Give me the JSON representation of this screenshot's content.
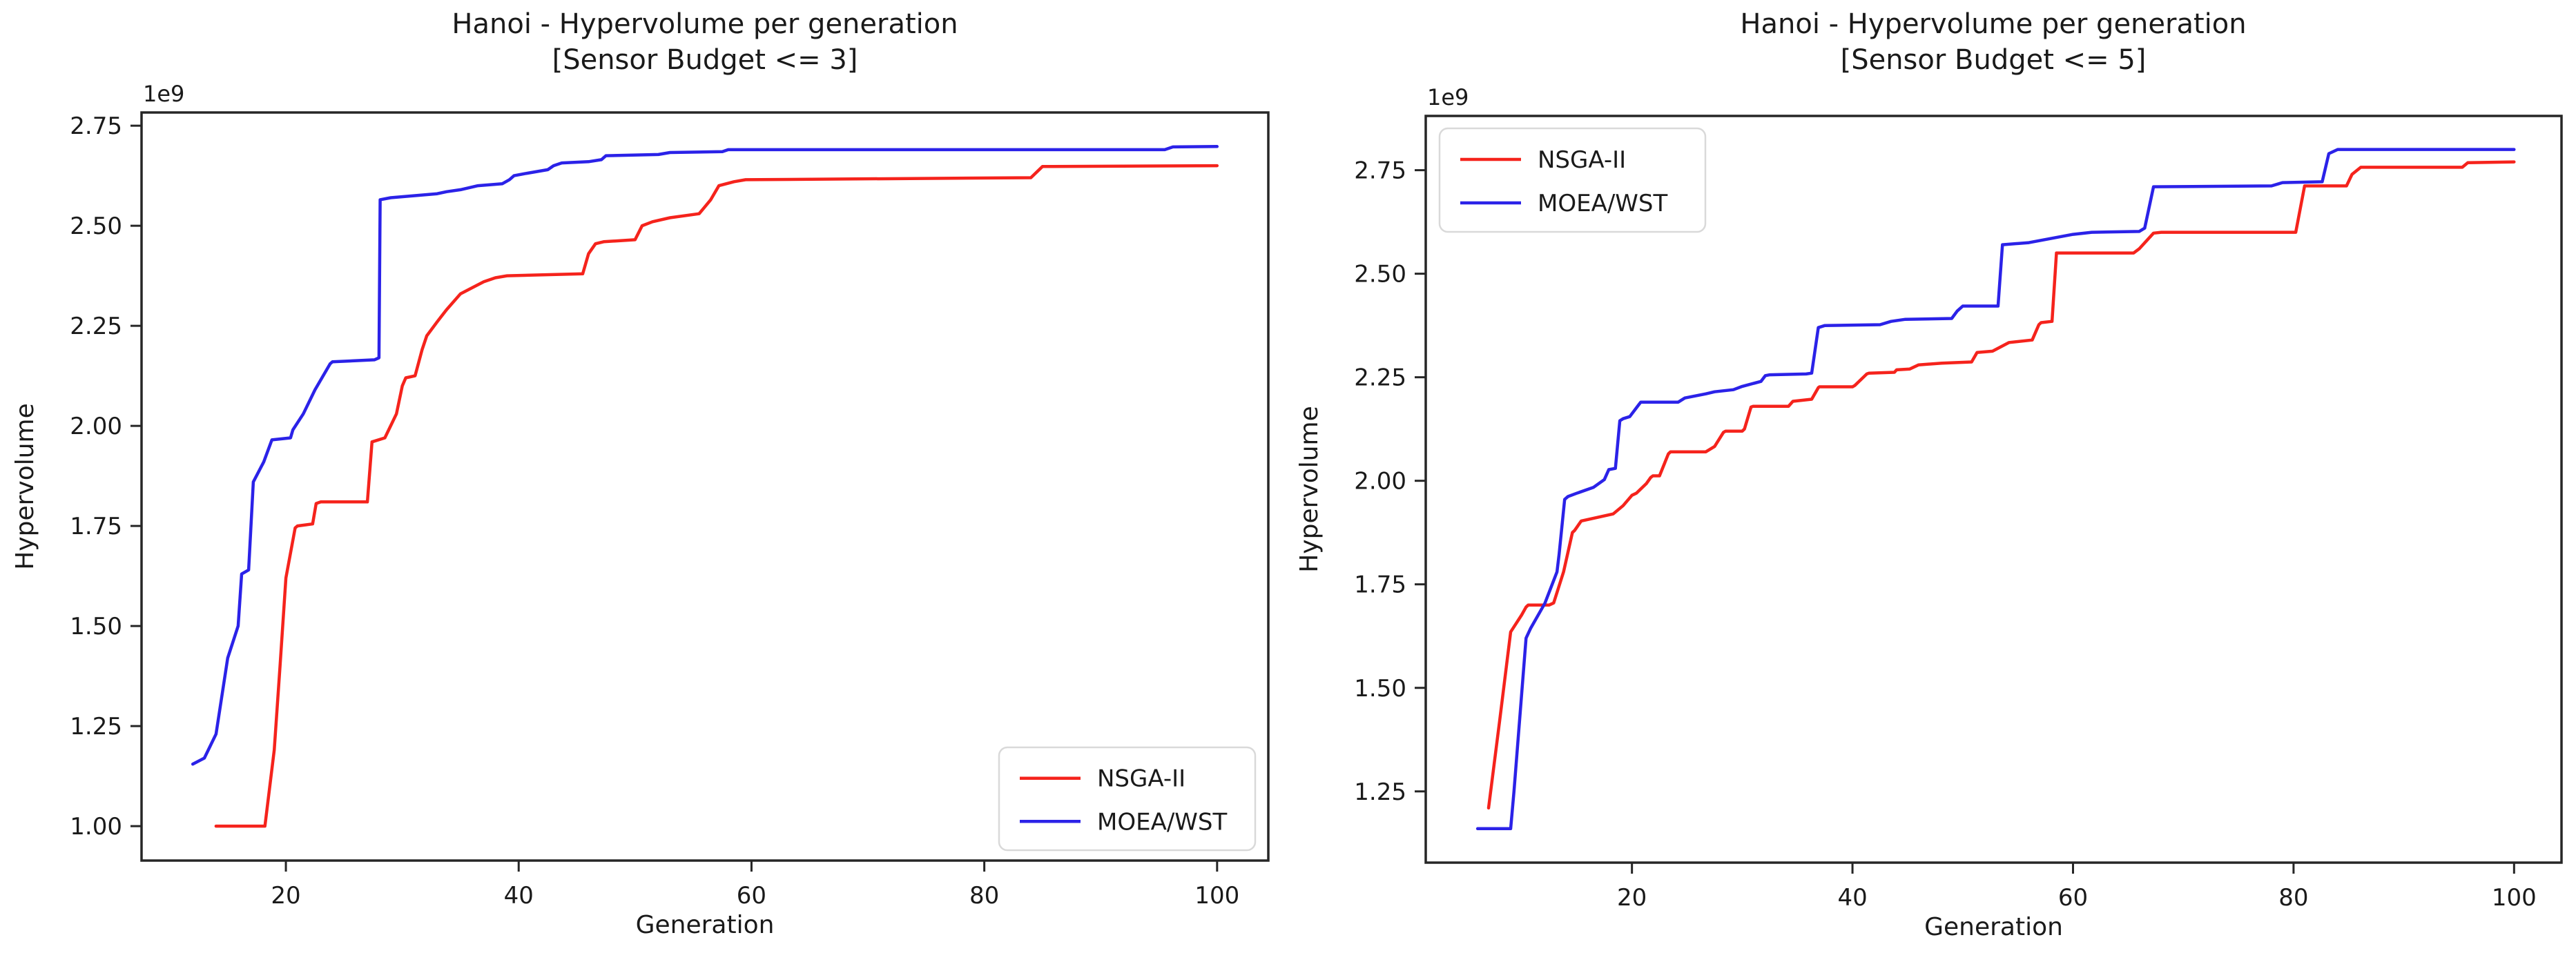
{
  "figure": {
    "background": "#ffffff",
    "text_color": "#1a1a1a",
    "spine_color": "#262626",
    "legend_border_color": "#d9d9d9",
    "red": "#f5231c",
    "blue": "#2b22e8"
  },
  "chart_data": [
    {
      "type": "line",
      "title": "Hanoi - Hypervolume per generation",
      "subtitle": "[Sensor Budget <= 3]",
      "xlabel": "Generation",
      "ylabel": "Hypervolume",
      "offset_text": "1e9",
      "x_ticks": [
        20,
        40,
        60,
        80,
        100
      ],
      "y_ticks": [
        1.0,
        1.25,
        1.5,
        1.75,
        2.0,
        2.25,
        2.5,
        2.75
      ],
      "xlim": [
        7.6,
        104.4
      ],
      "ylim": [
        0.914,
        2.783
      ],
      "grid": false,
      "legend": {
        "position": "lower right",
        "entries": [
          {
            "label": "NSGA-II",
            "color": "#f5231c"
          },
          {
            "label": "MOEA/WST",
            "color": "#2b22e8"
          }
        ]
      },
      "series": [
        {
          "name": "NSGA-II",
          "color": "#f5231c",
          "points": [
            [
              14,
              1.0
            ],
            [
              18.2,
              1.0
            ],
            [
              19,
              1.19
            ],
            [
              19.5,
              1.4
            ],
            [
              20,
              1.62
            ],
            [
              20.8,
              1.745
            ],
            [
              21,
              1.75
            ],
            [
              22.3,
              1.755
            ],
            [
              22.6,
              1.806
            ],
            [
              23,
              1.81
            ],
            [
              27,
              1.81
            ],
            [
              27.4,
              1.96
            ],
            [
              28.5,
              1.97
            ],
            [
              29,
              2.0
            ],
            [
              29.5,
              2.03
            ],
            [
              30,
              2.1
            ],
            [
              30.3,
              2.12
            ],
            [
              31.1,
              2.125
            ],
            [
              31.7,
              2.19
            ],
            [
              32.1,
              2.225
            ],
            [
              33,
              2.26
            ],
            [
              33.8,
              2.29
            ],
            [
              35,
              2.33
            ],
            [
              36,
              2.345
            ],
            [
              37,
              2.36
            ],
            [
              38,
              2.37
            ],
            [
              39,
              2.375
            ],
            [
              45.5,
              2.38
            ],
            [
              46,
              2.43
            ],
            [
              46.6,
              2.455
            ],
            [
              47.3,
              2.46
            ],
            [
              50,
              2.465
            ],
            [
              50.6,
              2.5
            ],
            [
              51.5,
              2.51
            ],
            [
              53,
              2.52
            ],
            [
              55.5,
              2.53
            ],
            [
              56.5,
              2.565
            ],
            [
              57.2,
              2.6
            ],
            [
              58.5,
              2.61
            ],
            [
              59.5,
              2.615
            ],
            [
              84,
              2.62
            ],
            [
              85,
              2.648
            ],
            [
              100,
              2.65
            ]
          ]
        },
        {
          "name": "MOEA/WST",
          "color": "#2b22e8",
          "points": [
            [
              12,
              1.155
            ],
            [
              13,
              1.17
            ],
            [
              14,
              1.23
            ],
            [
              15,
              1.42
            ],
            [
              15.9,
              1.5
            ],
            [
              16.2,
              1.63
            ],
            [
              16.8,
              1.64
            ],
            [
              17.2,
              1.86
            ],
            [
              18.1,
              1.91
            ],
            [
              18.8,
              1.965
            ],
            [
              20.4,
              1.97
            ],
            [
              20.6,
              1.99
            ],
            [
              21.5,
              2.03
            ],
            [
              22.5,
              2.09
            ],
            [
              23.8,
              2.155
            ],
            [
              24,
              2.16
            ],
            [
              27.6,
              2.165
            ],
            [
              28,
              2.17
            ],
            [
              28.1,
              2.565
            ],
            [
              29,
              2.57
            ],
            [
              31,
              2.575
            ],
            [
              33,
              2.58
            ],
            [
              33.8,
              2.585
            ],
            [
              35,
              2.59
            ],
            [
              36.5,
              2.6
            ],
            [
              38.6,
              2.605
            ],
            [
              39.2,
              2.615
            ],
            [
              39.6,
              2.625
            ],
            [
              40.5,
              2.63
            ],
            [
              42.5,
              2.64
            ],
            [
              43,
              2.65
            ],
            [
              43.7,
              2.657
            ],
            [
              46,
              2.66
            ],
            [
              47.1,
              2.665
            ],
            [
              47.5,
              2.675
            ],
            [
              52,
              2.678
            ],
            [
              53,
              2.683
            ],
            [
              57.5,
              2.685
            ],
            [
              58,
              2.69
            ],
            [
              95.5,
              2.69
            ],
            [
              96.2,
              2.697
            ],
            [
              100,
              2.698
            ]
          ]
        }
      ]
    },
    {
      "type": "line",
      "title": "Hanoi - Hypervolume per generation",
      "subtitle": "[Sensor Budget <= 5]",
      "xlabel": "Generation",
      "ylabel": "Hypervolume",
      "offset_text": "1e9",
      "x_ticks": [
        20,
        40,
        60,
        80,
        100
      ],
      "y_ticks": [
        1.25,
        1.5,
        1.75,
        2.0,
        2.25,
        2.5,
        2.75
      ],
      "xlim": [
        1.3,
        104.3
      ],
      "ylim": [
        1.078,
        2.881
      ],
      "grid": false,
      "legend": {
        "position": "upper left",
        "entries": [
          {
            "label": "NSGA-II",
            "color": "#f5231c"
          },
          {
            "label": "MOEA/WST",
            "color": "#2b22e8"
          }
        ]
      },
      "series": [
        {
          "name": "NSGA-II",
          "color": "#f5231c",
          "points": [
            [
              7,
              1.21
            ],
            [
              8,
              1.42
            ],
            [
              9,
              1.635
            ],
            [
              10,
              1.676
            ],
            [
              10.4,
              1.695
            ],
            [
              10.6,
              1.7
            ],
            [
              12.5,
              1.7
            ],
            [
              12.9,
              1.705
            ],
            [
              13.8,
              1.78
            ],
            [
              14.6,
              1.875
            ],
            [
              14.8,
              1.88
            ],
            [
              15.4,
              1.903
            ],
            [
              18.3,
              1.92
            ],
            [
              19.2,
              1.94
            ],
            [
              20,
              1.965
            ],
            [
              20.4,
              1.97
            ],
            [
              21.3,
              1.993
            ],
            [
              21.7,
              2.008
            ],
            [
              21.9,
              2.012
            ],
            [
              22.5,
              2.012
            ],
            [
              23.3,
              2.065
            ],
            [
              23.5,
              2.07
            ],
            [
              26.7,
              2.07
            ],
            [
              27.5,
              2.083
            ],
            [
              28.3,
              2.117
            ],
            [
              28.5,
              2.12
            ],
            [
              30,
              2.12
            ],
            [
              30.2,
              2.125
            ],
            [
              30.8,
              2.178
            ],
            [
              31,
              2.18
            ],
            [
              34.2,
              2.18
            ],
            [
              34.6,
              2.192
            ],
            [
              36.3,
              2.197
            ],
            [
              36.9,
              2.225
            ],
            [
              37,
              2.227
            ],
            [
              40,
              2.227
            ],
            [
              40.2,
              2.23
            ],
            [
              41.3,
              2.258
            ],
            [
              41.5,
              2.26
            ],
            [
              43.8,
              2.262
            ],
            [
              44,
              2.268
            ],
            [
              45.2,
              2.27
            ],
            [
              46,
              2.28
            ],
            [
              48.1,
              2.284
            ],
            [
              50.8,
              2.287
            ],
            [
              51.3,
              2.31
            ],
            [
              52.7,
              2.313
            ],
            [
              54.2,
              2.334
            ],
            [
              56.3,
              2.34
            ],
            [
              56.9,
              2.377
            ],
            [
              57.1,
              2.382
            ],
            [
              58.1,
              2.385
            ],
            [
              58.5,
              2.55
            ],
            [
              65.5,
              2.55
            ],
            [
              66,
              2.56
            ],
            [
              67.3,
              2.598
            ],
            [
              68,
              2.6
            ],
            [
              80.2,
              2.6
            ],
            [
              81,
              2.712
            ],
            [
              84.8,
              2.712
            ],
            [
              85.3,
              2.74
            ],
            [
              86.1,
              2.757
            ],
            [
              95.3,
              2.757
            ],
            [
              95.8,
              2.768
            ],
            [
              100,
              2.77
            ]
          ]
        },
        {
          "name": "MOEA/WST",
          "color": "#2b22e8",
          "points": [
            [
              6,
              1.16
            ],
            [
              9,
              1.16
            ],
            [
              9.3,
              1.25
            ],
            [
              10.4,
              1.62
            ],
            [
              10.8,
              1.643
            ],
            [
              12.1,
              1.704
            ],
            [
              13.2,
              1.78
            ],
            [
              13.4,
              1.823
            ],
            [
              13.9,
              1.955
            ],
            [
              14.2,
              1.962
            ],
            [
              15,
              1.97
            ],
            [
              16.5,
              1.984
            ],
            [
              17.5,
              2.003
            ],
            [
              17.9,
              2.027
            ],
            [
              18.5,
              2.03
            ],
            [
              18.9,
              2.145
            ],
            [
              19.2,
              2.15
            ],
            [
              19.8,
              2.155
            ],
            [
              20.6,
              2.183
            ],
            [
              20.8,
              2.19
            ],
            [
              24.2,
              2.19
            ],
            [
              24.8,
              2.2
            ],
            [
              26.7,
              2.21
            ],
            [
              27.5,
              2.215
            ],
            [
              29.2,
              2.22
            ],
            [
              30,
              2.228
            ],
            [
              31.7,
              2.24
            ],
            [
              32.1,
              2.254
            ],
            [
              32.5,
              2.256
            ],
            [
              35.8,
              2.258
            ],
            [
              36.3,
              2.26
            ],
            [
              36.9,
              2.37
            ],
            [
              37.5,
              2.375
            ],
            [
              42.5,
              2.377
            ],
            [
              43.5,
              2.385
            ],
            [
              44.8,
              2.39
            ],
            [
              49,
              2.392
            ],
            [
              49.5,
              2.41
            ],
            [
              50,
              2.422
            ],
            [
              53.2,
              2.422
            ],
            [
              53.6,
              2.57
            ],
            [
              56,
              2.575
            ],
            [
              57,
              2.58
            ],
            [
              59,
              2.59
            ],
            [
              60,
              2.595
            ],
            [
              61.7,
              2.6
            ],
            [
              66,
              2.602
            ],
            [
              66.5,
              2.61
            ],
            [
              67.3,
              2.71
            ],
            [
              78,
              2.712
            ],
            [
              79,
              2.72
            ],
            [
              82.6,
              2.722
            ],
            [
              83.2,
              2.79
            ],
            [
              84,
              2.8
            ],
            [
              100,
              2.8
            ]
          ]
        }
      ]
    }
  ]
}
